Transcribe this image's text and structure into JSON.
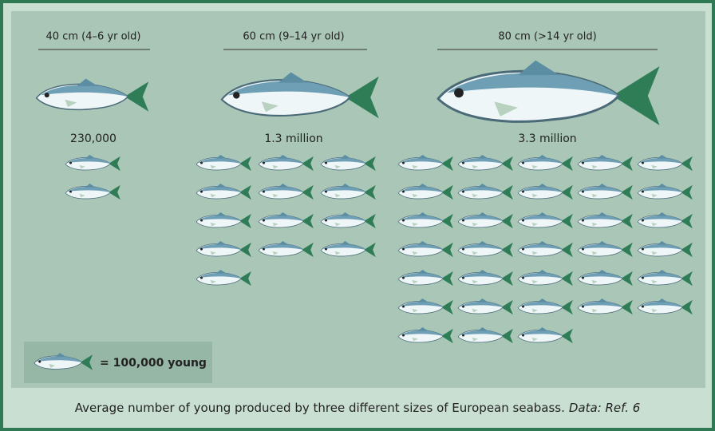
{
  "chart_data": {
    "type": "pictograph",
    "categories": [
      "40 cm (4–6 yr old)",
      "60 cm (9–14 yr old)",
      "80 cm (>14 yr old)"
    ],
    "values": [
      230000,
      1300000,
      3300000
    ],
    "value_labels": [
      "230,000",
      "1.3 million",
      "3.3 million"
    ],
    "icon_value": 100000,
    "legend_label": "= 100,000 young",
    "caption": "Average number of young produced by three different sizes of European seabass.",
    "source": "Data: Ref. 6"
  }
}
